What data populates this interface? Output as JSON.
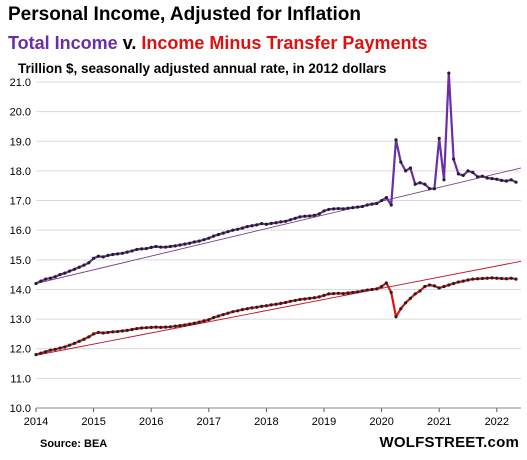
{
  "header": {
    "title": "Personal Income, Adjusted for Inflation",
    "subtitle_total": "Total Income",
    "subtitle_sep": " v. ",
    "subtitle_minus": "Income Minus Transfer Payments",
    "units": "Trillion $, seasonally adjusted annual rate, in 2012 dollars"
  },
  "footer": {
    "source": "Source: BEA",
    "brand": "WOLFSTREET.com"
  },
  "colors": {
    "total": "#6a2ea6",
    "minus": "#e01010",
    "trend_total": "#7a3c8c",
    "trend_minus": "#c0102a",
    "markers": "#222222",
    "grid": "#d9d9d9"
  },
  "chart_data": {
    "type": "line",
    "title": "Personal Income, Adjusted for Inflation",
    "xlabel": "",
    "ylabel": "Trillion $, seasonally adjusted annual rate, in 2012 dollars",
    "xlim": [
      2014.0,
      2022.42
    ],
    "ylim": [
      10.0,
      21.0
    ],
    "x_ticks": [
      "2014",
      "2015",
      "2016",
      "2017",
      "2018",
      "2019",
      "2020",
      "2021",
      "2022"
    ],
    "y_ticks": [
      "10.0",
      "11.0",
      "12.0",
      "13.0",
      "14.0",
      "15.0",
      "16.0",
      "17.0",
      "18.0",
      "19.0",
      "20.0",
      "21.0"
    ],
    "grid": "horizontal",
    "legend": "none",
    "series": [
      {
        "name": "Total Income",
        "x": [
          2014.0,
          2014.083,
          2014.167,
          2014.25,
          2014.333,
          2014.417,
          2014.5,
          2014.583,
          2014.667,
          2014.75,
          2014.833,
          2014.917,
          2015.0,
          2015.083,
          2015.167,
          2015.25,
          2015.333,
          2015.417,
          2015.5,
          2015.583,
          2015.667,
          2015.75,
          2015.833,
          2015.917,
          2016.0,
          2016.083,
          2016.167,
          2016.25,
          2016.333,
          2016.417,
          2016.5,
          2016.583,
          2016.667,
          2016.75,
          2016.833,
          2016.917,
          2017.0,
          2017.083,
          2017.167,
          2017.25,
          2017.333,
          2017.417,
          2017.5,
          2017.583,
          2017.667,
          2017.75,
          2017.833,
          2017.917,
          2018.0,
          2018.083,
          2018.167,
          2018.25,
          2018.333,
          2018.417,
          2018.5,
          2018.583,
          2018.667,
          2018.75,
          2018.833,
          2018.917,
          2019.0,
          2019.083,
          2019.167,
          2019.25,
          2019.333,
          2019.417,
          2019.5,
          2019.583,
          2019.667,
          2019.75,
          2019.833,
          2019.917,
          2020.0,
          2020.083,
          2020.167,
          2020.25,
          2020.333,
          2020.417,
          2020.5,
          2020.583,
          2020.667,
          2020.75,
          2020.833,
          2020.917,
          2021.0,
          2021.083,
          2021.167,
          2021.25,
          2021.333,
          2021.417,
          2021.5,
          2021.583,
          2021.667,
          2021.75,
          2021.833,
          2021.917,
          2022.0,
          2022.083,
          2022.167,
          2022.25,
          2022.333
        ],
        "values": [
          14.2,
          14.28,
          14.35,
          14.38,
          14.43,
          14.5,
          14.55,
          14.62,
          14.68,
          14.75,
          14.82,
          14.9,
          15.05,
          15.12,
          15.1,
          15.15,
          15.18,
          15.2,
          15.22,
          15.26,
          15.3,
          15.35,
          15.37,
          15.38,
          15.42,
          15.45,
          15.43,
          15.43,
          15.45,
          15.47,
          15.5,
          15.53,
          15.56,
          15.6,
          15.63,
          15.68,
          15.73,
          15.8,
          15.85,
          15.9,
          15.95,
          16.0,
          16.03,
          16.07,
          16.12,
          16.15,
          16.18,
          16.22,
          16.2,
          16.23,
          16.25,
          16.28,
          16.3,
          16.35,
          16.4,
          16.45,
          16.47,
          16.48,
          16.5,
          16.55,
          16.65,
          16.7,
          16.72,
          16.73,
          16.72,
          16.74,
          16.76,
          16.78,
          16.8,
          16.85,
          16.88,
          16.9,
          17.0,
          17.1,
          16.85,
          19.05,
          18.3,
          18.0,
          18.1,
          17.55,
          17.6,
          17.55,
          17.4,
          17.4,
          19.1,
          17.7,
          21.3,
          18.4,
          17.9,
          17.85,
          18.0,
          17.95,
          17.8,
          17.82,
          17.76,
          17.74,
          17.72,
          17.68,
          17.66,
          17.7,
          17.62
        ]
      },
      {
        "name": "Income Minus Transfer Payments",
        "x": [
          2014.0,
          2014.083,
          2014.167,
          2014.25,
          2014.333,
          2014.417,
          2014.5,
          2014.583,
          2014.667,
          2014.75,
          2014.833,
          2014.917,
          2015.0,
          2015.083,
          2015.167,
          2015.25,
          2015.333,
          2015.417,
          2015.5,
          2015.583,
          2015.667,
          2015.75,
          2015.833,
          2015.917,
          2016.0,
          2016.083,
          2016.167,
          2016.25,
          2016.333,
          2016.417,
          2016.5,
          2016.583,
          2016.667,
          2016.75,
          2016.833,
          2016.917,
          2017.0,
          2017.083,
          2017.167,
          2017.25,
          2017.333,
          2017.417,
          2017.5,
          2017.583,
          2017.667,
          2017.75,
          2017.833,
          2017.917,
          2018.0,
          2018.083,
          2018.167,
          2018.25,
          2018.333,
          2018.417,
          2018.5,
          2018.583,
          2018.667,
          2018.75,
          2018.833,
          2018.917,
          2019.0,
          2019.083,
          2019.167,
          2019.25,
          2019.333,
          2019.417,
          2019.5,
          2019.583,
          2019.667,
          2019.75,
          2019.833,
          2019.917,
          2020.0,
          2020.083,
          2020.167,
          2020.25,
          2020.333,
          2020.417,
          2020.5,
          2020.583,
          2020.667,
          2020.75,
          2020.833,
          2020.917,
          2021.0,
          2021.083,
          2021.167,
          2021.25,
          2021.333,
          2021.417,
          2021.5,
          2021.583,
          2021.667,
          2021.75,
          2021.833,
          2021.917,
          2022.0,
          2022.083,
          2022.167,
          2022.25,
          2022.333
        ],
        "values": [
          11.8,
          11.85,
          11.9,
          11.95,
          11.98,
          12.02,
          12.06,
          12.12,
          12.18,
          12.25,
          12.32,
          12.4,
          12.5,
          12.55,
          12.53,
          12.55,
          12.57,
          12.58,
          12.6,
          12.62,
          12.65,
          12.68,
          12.7,
          12.71,
          12.72,
          12.73,
          12.72,
          12.73,
          12.74,
          12.76,
          12.78,
          12.8,
          12.83,
          12.86,
          12.9,
          12.94,
          12.98,
          13.05,
          13.1,
          13.15,
          13.2,
          13.25,
          13.28,
          13.32,
          13.35,
          13.38,
          13.4,
          13.43,
          13.45,
          13.48,
          13.5,
          13.53,
          13.56,
          13.6,
          13.63,
          13.66,
          13.68,
          13.7,
          13.72,
          13.75,
          13.8,
          13.85,
          13.86,
          13.87,
          13.86,
          13.88,
          13.9,
          13.92,
          13.95,
          13.98,
          14.0,
          14.02,
          14.1,
          14.22,
          13.9,
          13.08,
          13.35,
          13.55,
          13.7,
          13.85,
          13.95,
          14.1,
          14.15,
          14.12,
          14.05,
          14.1,
          14.15,
          14.2,
          14.25,
          14.28,
          14.32,
          14.35,
          14.36,
          14.37,
          14.38,
          14.39,
          14.38,
          14.37,
          14.36,
          14.38,
          14.35
        ]
      }
    ],
    "trendlines": [
      {
        "series": "Total Income",
        "x": [
          2014.0,
          2022.42
        ],
        "values": [
          14.2,
          18.1
        ]
      },
      {
        "series": "Income Minus Transfer Payments",
        "x": [
          2014.0,
          2022.42
        ],
        "values": [
          11.78,
          14.95
        ]
      }
    ]
  }
}
